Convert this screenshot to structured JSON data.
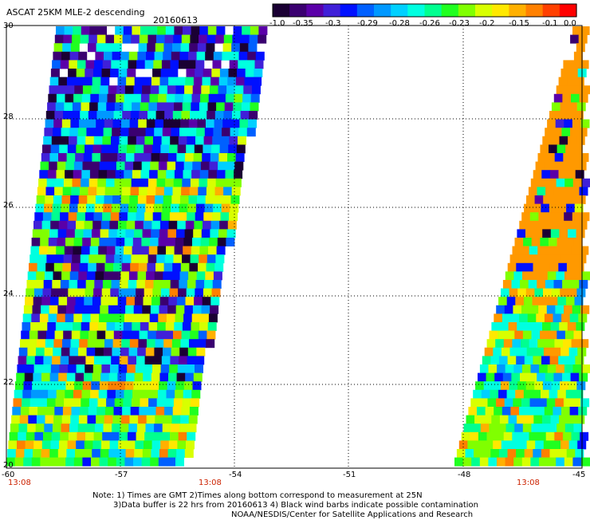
{
  "header": {
    "title": "ASCAT 25KM MLE-2 descending",
    "date": "20160613"
  },
  "colorbar": {
    "labels": [
      "-1.0",
      "-0.35",
      "-0.3",
      "-0.29",
      "-0.28",
      "-0.26",
      "-0.23",
      "-0.2",
      "-0.15",
      "-0.1",
      "0.0"
    ],
    "colors": [
      "#1a0033",
      "#3a0070",
      "#5a00a8",
      "#4020d8",
      "#0010ff",
      "#0060ff",
      "#0098ff",
      "#00d0ff",
      "#00ffe0",
      "#00ff90",
      "#20ff20",
      "#80ff00",
      "#d8ff00",
      "#ffe800",
      "#ffb000",
      "#ff8000",
      "#ff4000",
      "#ff0000"
    ]
  },
  "map": {
    "lon_ticks": [
      "-60",
      "-57",
      "-54",
      "-51",
      "-48",
      "-45"
    ],
    "lat_ticks": [
      "30",
      "28",
      "26",
      "24",
      "22",
      "20"
    ],
    "times": [
      "13:08",
      "13:08",
      "13:08"
    ]
  },
  "notes": {
    "line1": "Note: 1) Times are GMT 2)Times along bottom correspond to measurement at 25N",
    "line2": "3)Data buffer is 22 hrs from 20160613 4) Black wind barbs indicate possible contamination",
    "line3": "NOAA/NESDIS/Center for Satellite Applications and Research"
  },
  "style": {
    "orange": "#ff9900",
    "time_color": "#cc2200"
  }
}
